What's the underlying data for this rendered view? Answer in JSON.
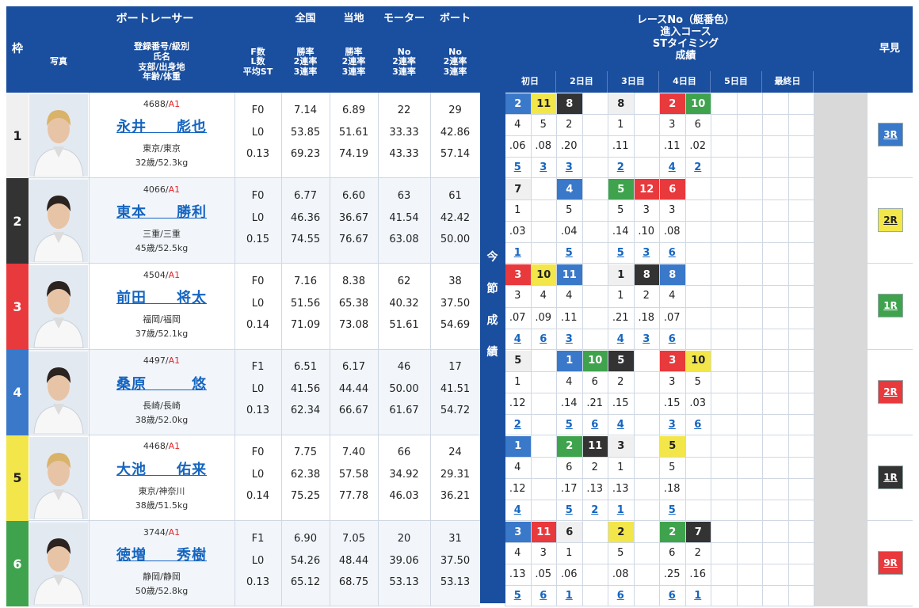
{
  "header": {
    "frame": "枠",
    "boat_racer": "ボートレーサー",
    "photo": "写真",
    "info_lines": [
      "登録番号/級別",
      "氏名",
      "支部/出身地",
      "年齢/体重"
    ],
    "f_lines": [
      "F数",
      "L数",
      "平均ST"
    ],
    "national": "全国",
    "local": "当地",
    "motor": "モーター",
    "boat": "ボート",
    "rate_lines": [
      "勝率",
      "2連率",
      "3連率"
    ],
    "no_lines": [
      "No",
      "2連率",
      "3連率"
    ],
    "race_lines": [
      "レースNo（艇番色）",
      "進入コース",
      "STタイミング",
      "成績"
    ],
    "days": [
      "初日",
      "2日目",
      "3日目",
      "4日目",
      "5日目",
      "最終日"
    ],
    "early": "早見",
    "konsetsu": [
      "今",
      "節",
      "成",
      "績"
    ]
  },
  "colors": {
    "header_bg": "#1a4e9e",
    "frame": [
      "#f0f0f0",
      "#333333",
      "#e8393d",
      "#3a78c9",
      "#f2e64a",
      "#3fa34d"
    ],
    "frame_text": [
      "#222222",
      "#ffffff",
      "#ffffff",
      "#ffffff",
      "#222222",
      "#ffffff"
    ],
    "boat_bg": {
      "1": "#f0f0f0",
      "2": "#333333",
      "3": "#e8393d",
      "4": "#3a78c9",
      "5": "#f2e64a",
      "6": "#3fa34d"
    },
    "boat_fg": {
      "1": "#222222",
      "2": "#ffffff",
      "3": "#ffffff",
      "4": "#ffffff",
      "5": "#222222",
      "6": "#ffffff"
    }
  },
  "racers": [
    {
      "frame": "1",
      "reg": "4688",
      "cls": "A1",
      "name": "永井　　彪也",
      "branch": "東京/東京",
      "age_weight": "32歳/52.3kg",
      "f": "F0",
      "l": "L0",
      "st": "0.13",
      "nat": [
        "7.14",
        "53.85",
        "69.23"
      ],
      "loc": [
        "6.89",
        "51.61",
        "74.19"
      ],
      "motor": [
        "22",
        "33.33",
        "43.33"
      ],
      "boat": [
        "29",
        "42.86",
        "57.14"
      ],
      "races": [
        {
          "race": "2",
          "boat": "4",
          "course": "4",
          "st": ".06",
          "res": "5"
        },
        {
          "race": "11",
          "boat": "5",
          "course": "5",
          "st": ".08",
          "res": "3"
        },
        {
          "race": "8",
          "boat": "2",
          "course": "2",
          "st": ".20",
          "res": "3"
        },
        null,
        {
          "race": "8",
          "boat": "1",
          "course": "1",
          "st": ".11",
          "res": "2"
        },
        null,
        {
          "race": "2",
          "boat": "3",
          "course": "3",
          "st": ".11",
          "res": "4"
        },
        {
          "race": "10",
          "boat": "6",
          "course": "6",
          "st": ".02",
          "res": "2"
        },
        null,
        null,
        null,
        null
      ],
      "early": {
        "label": "3R",
        "boat": "4"
      }
    },
    {
      "frame": "2",
      "reg": "4066",
      "cls": "A1",
      "name": "東本　　勝利",
      "branch": "三重/三重",
      "age_weight": "45歳/52.5kg",
      "f": "F0",
      "l": "L0",
      "st": "0.15",
      "nat": [
        "6.77",
        "46.36",
        "74.55"
      ],
      "loc": [
        "6.60",
        "36.67",
        "76.67"
      ],
      "motor": [
        "63",
        "41.54",
        "63.08"
      ],
      "boat": [
        "61",
        "42.42",
        "50.00"
      ],
      "races": [
        {
          "race": "7",
          "boat": "1",
          "course": "1",
          "st": ".03",
          "res": "1"
        },
        null,
        {
          "race": "4",
          "boat": "4",
          "course": "5",
          "st": ".04",
          "res": "5"
        },
        null,
        {
          "race": "5",
          "boat": "6",
          "course": "5",
          "st": ".14",
          "res": "5"
        },
        {
          "race": "12",
          "boat": "3",
          "course": "3",
          "st": ".10",
          "res": "3"
        },
        {
          "race": "6",
          "boat": "3",
          "course": "3",
          "st": ".08",
          "res": "6"
        },
        null,
        null,
        null,
        null,
        null
      ],
      "early": {
        "label": "2R",
        "boat": "5"
      }
    },
    {
      "frame": "3",
      "reg": "4504",
      "cls": "A1",
      "name": "前田　　将太",
      "branch": "福岡/福岡",
      "age_weight": "37歳/52.1kg",
      "f": "F0",
      "l": "L0",
      "st": "0.14",
      "nat": [
        "7.16",
        "51.56",
        "71.09"
      ],
      "loc": [
        "8.38",
        "65.38",
        "73.08"
      ],
      "motor": [
        "62",
        "40.32",
        "51.61"
      ],
      "boat": [
        "38",
        "37.50",
        "54.69"
      ],
      "races": [
        {
          "race": "3",
          "boat": "3",
          "course": "3",
          "st": ".07",
          "res": "4"
        },
        {
          "race": "10",
          "boat": "5",
          "course": "4",
          "st": ".09",
          "res": "6"
        },
        {
          "race": "11",
          "boat": "4",
          "course": "4",
          "st": ".11",
          "res": "3"
        },
        null,
        {
          "race": "1",
          "boat": "1",
          "course": "1",
          "st": ".21",
          "res": "4"
        },
        {
          "race": "8",
          "boat": "2",
          "course": "2",
          "st": ".18",
          "res": "3"
        },
        {
          "race": "8",
          "boat": "4",
          "course": "4",
          "st": ".07",
          "res": "6"
        },
        null,
        null,
        null,
        null,
        null
      ],
      "early": {
        "label": "1R",
        "boat": "6"
      }
    },
    {
      "frame": "4",
      "reg": "4497",
      "cls": "A1",
      "name": "桑原　　　悠",
      "branch": "長崎/長崎",
      "age_weight": "38歳/52.0kg",
      "f": "F1",
      "l": "L0",
      "st": "0.13",
      "nat": [
        "6.51",
        "41.56",
        "62.34"
      ],
      "loc": [
        "6.17",
        "44.44",
        "66.67"
      ],
      "motor": [
        "46",
        "50.00",
        "61.67"
      ],
      "boat": [
        "17",
        "41.51",
        "54.72"
      ],
      "races": [
        {
          "race": "5",
          "boat": "1",
          "course": "1",
          "st": ".12",
          "res": "2"
        },
        null,
        {
          "race": "1",
          "boat": "4",
          "course": "4",
          "st": ".14",
          "res": "5"
        },
        {
          "race": "10",
          "boat": "6",
          "course": "6",
          "st": ".21",
          "res": "6"
        },
        {
          "race": "5",
          "boat": "2",
          "course": "2",
          "st": ".15",
          "res": "4"
        },
        null,
        {
          "race": "3",
          "boat": "3",
          "course": "3",
          "st": ".15",
          "res": "3"
        },
        {
          "race": "10",
          "boat": "5",
          "course": "5",
          "st": ".03",
          "res": "6"
        },
        null,
        null,
        null,
        null
      ],
      "early": {
        "label": "2R",
        "boat": "3"
      }
    },
    {
      "frame": "5",
      "reg": "4468",
      "cls": "A1",
      "name": "大池　　佑来",
      "branch": "東京/神奈川",
      "age_weight": "38歳/51.5kg",
      "f": "F0",
      "l": "L0",
      "st": "0.14",
      "nat": [
        "7.75",
        "62.38",
        "75.25"
      ],
      "loc": [
        "7.40",
        "57.58",
        "77.78"
      ],
      "motor": [
        "66",
        "34.92",
        "46.03"
      ],
      "boat": [
        "24",
        "29.31",
        "36.21"
      ],
      "races": [
        {
          "race": "1",
          "boat": "4",
          "course": "4",
          "st": ".12",
          "res": "4"
        },
        null,
        {
          "race": "2",
          "boat": "6",
          "course": "6",
          "st": ".17",
          "res": "5"
        },
        {
          "race": "11",
          "boat": "2",
          "course": "2",
          "st": ".13",
          "res": "2"
        },
        {
          "race": "3",
          "boat": "1",
          "course": "1",
          "st": ".13",
          "res": "1"
        },
        null,
        {
          "race": "5",
          "boat": "5",
          "course": "5",
          "st": ".18",
          "res": "5"
        },
        null,
        null,
        null,
        null,
        null
      ],
      "early": {
        "label": "1R",
        "boat": "2"
      }
    },
    {
      "frame": "6",
      "reg": "3744",
      "cls": "A1",
      "name": "徳増　　秀樹",
      "branch": "静岡/静岡",
      "age_weight": "50歳/52.8kg",
      "f": "F1",
      "l": "L0",
      "st": "0.13",
      "nat": [
        "6.90",
        "54.26",
        "65.12"
      ],
      "loc": [
        "7.05",
        "48.44",
        "68.75"
      ],
      "motor": [
        "20",
        "39.06",
        "53.13"
      ],
      "boat": [
        "31",
        "37.50",
        "53.13"
      ],
      "races": [
        {
          "race": "3",
          "boat": "4",
          "course": "4",
          "st": ".13",
          "res": "5"
        },
        {
          "race": "11",
          "boat": "3",
          "course": "3",
          "st": ".05",
          "res": "6"
        },
        {
          "race": "6",
          "boat": "1",
          "course": "1",
          "st": ".06",
          "res": "1"
        },
        null,
        {
          "race": "2",
          "boat": "5",
          "course": "5",
          "st": ".08",
          "res": "6"
        },
        null,
        {
          "race": "2",
          "boat": "6",
          "course": "6",
          "st": ".25",
          "res": "6"
        },
        {
          "race": "7",
          "boat": "2",
          "course": "2",
          "st": ".16",
          "res": "1"
        },
        null,
        null,
        null,
        null
      ],
      "early": {
        "label": "9R",
        "boat": "3"
      }
    }
  ]
}
